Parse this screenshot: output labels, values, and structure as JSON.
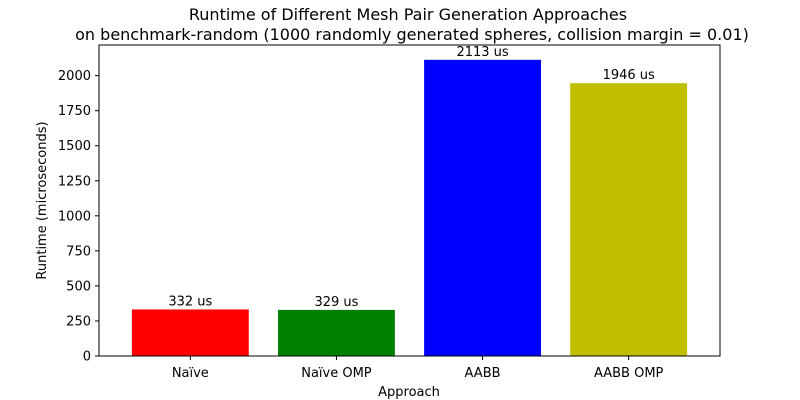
{
  "chart_data": {
    "type": "bar",
    "title": "Runtime of Different Mesh Pair Generation Approaches",
    "subtitle": "on benchmark-random (1000 randomly generated spheres, collision margin = 0.01)",
    "xlabel": "Approach",
    "ylabel": "Runtime (microseconds)",
    "categories": [
      "Naïve",
      "Naïve OMP",
      "AABB",
      "AABB OMP"
    ],
    "values": [
      332,
      329,
      2113,
      1946
    ],
    "value_labels": [
      "332 us",
      "329 us",
      "2113 us",
      "1946 us"
    ],
    "colors": [
      "#ff0000",
      "#008000",
      "#0000ff",
      "#bfbf00"
    ],
    "ylim": [
      0,
      2218.65
    ],
    "yticks": [
      0,
      250,
      500,
      750,
      1000,
      1250,
      1500,
      1750,
      2000
    ],
    "grid": false,
    "legend": "none"
  }
}
